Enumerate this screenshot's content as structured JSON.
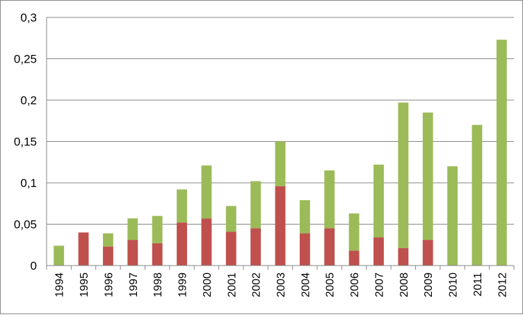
{
  "chart_data": {
    "type": "bar",
    "stacked": true,
    "title": "",
    "xlabel": "",
    "ylabel": "",
    "categories": [
      "1994",
      "1995",
      "1996",
      "1997",
      "1998",
      "1999",
      "2000",
      "2001",
      "2002",
      "2003",
      "2004",
      "2005",
      "2006",
      "2007",
      "2008",
      "2009",
      "2010",
      "2011",
      "2012"
    ],
    "series": [
      {
        "color": "#c0504d",
        "values": [
          0,
          0.04,
          0.023,
          0.031,
          0.027,
          0.052,
          0.057,
          0.041,
          0.045,
          0.096,
          0.039,
          0.045,
          0.018,
          0.034,
          0.021,
          0.031,
          0,
          0,
          0
        ]
      },
      {
        "color": "#9bbb59",
        "values": [
          0.024,
          0,
          0.016,
          0.026,
          0.033,
          0.04,
          0.064,
          0.031,
          0.057,
          0.054,
          0.04,
          0.07,
          0.045,
          0.088,
          0.176,
          0.154,
          0.12,
          0.17,
          0.273
        ]
      }
    ],
    "ylim": [
      0,
      0.3
    ],
    "yticks": [
      0,
      0.05,
      0.1,
      0.15,
      0.2,
      0.25,
      0.3
    ],
    "ytick_labels": [
      "0",
      "0,05",
      "0,1",
      "0,15",
      "0,2",
      "0,25",
      "0,3"
    ],
    "grid": true,
    "legend": "none"
  }
}
